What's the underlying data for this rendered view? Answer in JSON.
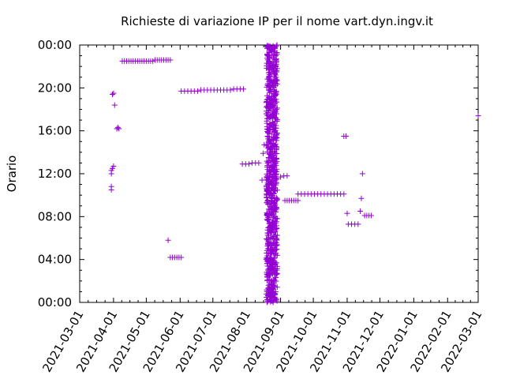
{
  "chart_data": {
    "type": "scatter",
    "title": "Richieste di variazione IP per il nome vart.dyn.ingv.it",
    "xlabel": "",
    "ylabel": "Orario",
    "x_ticks": [
      "2021-03-01",
      "2021-04-01",
      "2021-05-01",
      "2021-06-01",
      "2021-07-01",
      "2021-08-01",
      "2021-09-01",
      "2021-10-01",
      "2021-11-01",
      "2021-12-01",
      "2022-01-01",
      "2022-02-01",
      "2022-03-01"
    ],
    "y_ticks": [
      "00:00",
      "04:00",
      "08:00",
      "12:00",
      "16:00",
      "20:00",
      "00:00"
    ],
    "xlim": [
      "2021-03-01",
      "2022-03-01"
    ],
    "ylim_hours": [
      0,
      24
    ],
    "grid": false,
    "marker": "+",
    "color": "#9400d3",
    "points": [
      [
        "2021-03-30",
        10.5
      ],
      [
        "2021-03-30",
        10.8
      ],
      [
        "2021-03-30",
        12.0
      ],
      [
        "2021-03-30",
        12.3
      ],
      [
        "2021-03-31",
        12.5
      ],
      [
        "2021-04-01",
        12.7
      ],
      [
        "2021-03-31",
        19.4
      ],
      [
        "2021-04-01",
        19.5
      ],
      [
        "2021-04-02",
        18.4
      ],
      [
        "2021-04-04",
        16.2
      ],
      [
        "2021-04-05",
        16.3
      ],
      [
        "2021-04-06",
        16.2
      ],
      [
        "2021-04-09",
        22.5
      ],
      [
        "2021-04-11",
        22.5
      ],
      [
        "2021-04-13",
        22.5
      ],
      [
        "2021-04-15",
        22.5
      ],
      [
        "2021-04-17",
        22.5
      ],
      [
        "2021-04-19",
        22.5
      ],
      [
        "2021-04-21",
        22.5
      ],
      [
        "2021-04-23",
        22.5
      ],
      [
        "2021-04-25",
        22.5
      ],
      [
        "2021-04-27",
        22.5
      ],
      [
        "2021-04-29",
        22.5
      ],
      [
        "2021-05-01",
        22.5
      ],
      [
        "2021-05-03",
        22.5
      ],
      [
        "2021-05-05",
        22.5
      ],
      [
        "2021-05-07",
        22.5
      ],
      [
        "2021-05-09",
        22.6
      ],
      [
        "2021-05-11",
        22.6
      ],
      [
        "2021-05-13",
        22.6
      ],
      [
        "2021-05-15",
        22.6
      ],
      [
        "2021-05-17",
        22.6
      ],
      [
        "2021-05-19",
        22.6
      ],
      [
        "2021-05-21",
        22.6
      ],
      [
        "2021-05-23",
        22.6
      ],
      [
        "2021-05-21",
        5.8
      ],
      [
        "2021-05-23",
        4.2
      ],
      [
        "2021-05-25",
        4.2
      ],
      [
        "2021-05-27",
        4.2
      ],
      [
        "2021-05-29",
        4.2
      ],
      [
        "2021-05-31",
        4.2
      ],
      [
        "2021-06-02",
        4.2
      ],
      [
        "2021-06-02",
        19.7
      ],
      [
        "2021-06-05",
        19.7
      ],
      [
        "2021-06-08",
        19.7
      ],
      [
        "2021-06-11",
        19.7
      ],
      [
        "2021-06-14",
        19.7
      ],
      [
        "2021-06-17",
        19.7
      ],
      [
        "2021-06-20",
        19.8
      ],
      [
        "2021-06-23",
        19.8
      ],
      [
        "2021-06-26",
        19.8
      ],
      [
        "2021-06-29",
        19.8
      ],
      [
        "2021-07-02",
        19.8
      ],
      [
        "2021-07-05",
        19.8
      ],
      [
        "2021-07-08",
        19.8
      ],
      [
        "2021-07-11",
        19.8
      ],
      [
        "2021-07-14",
        19.8
      ],
      [
        "2021-07-17",
        19.8
      ],
      [
        "2021-07-20",
        19.9
      ],
      [
        "2021-07-23",
        19.9
      ],
      [
        "2021-07-26",
        19.9
      ],
      [
        "2021-07-29",
        19.9
      ],
      [
        "2021-07-28",
        12.9
      ],
      [
        "2021-07-31",
        12.9
      ],
      [
        "2021-08-03",
        12.9
      ],
      [
        "2021-08-06",
        13.0
      ],
      [
        "2021-08-09",
        13.0
      ],
      [
        "2021-08-12",
        13.0
      ],
      [
        "2021-08-15",
        11.4
      ],
      [
        "2021-08-16",
        13.9
      ],
      [
        "2021-08-17",
        14.7
      ],
      [
        "2021-09-01",
        11.7
      ],
      [
        "2021-09-04",
        11.8
      ],
      [
        "2021-09-07",
        11.8
      ],
      [
        "2021-09-05",
        9.5
      ],
      [
        "2021-09-07",
        9.5
      ],
      [
        "2021-09-09",
        9.5
      ],
      [
        "2021-09-11",
        9.5
      ],
      [
        "2021-09-13",
        9.5
      ],
      [
        "2021-09-15",
        9.5
      ],
      [
        "2021-09-17",
        9.5
      ],
      [
        "2021-09-17",
        10.1
      ],
      [
        "2021-09-20",
        10.1
      ],
      [
        "2021-09-23",
        10.1
      ],
      [
        "2021-09-26",
        10.1
      ],
      [
        "2021-09-29",
        10.1
      ],
      [
        "2021-10-02",
        10.1
      ],
      [
        "2021-10-05",
        10.1
      ],
      [
        "2021-10-08",
        10.1
      ],
      [
        "2021-10-11",
        10.1
      ],
      [
        "2021-10-14",
        10.1
      ],
      [
        "2021-10-17",
        10.1
      ],
      [
        "2021-10-20",
        10.1
      ],
      [
        "2021-10-23",
        10.1
      ],
      [
        "2021-10-26",
        10.1
      ],
      [
        "2021-10-29",
        10.1
      ],
      [
        "2021-10-29",
        15.5
      ],
      [
        "2021-10-31",
        15.5
      ],
      [
        "2021-11-01",
        8.3
      ],
      [
        "2021-11-02",
        7.3
      ],
      [
        "2021-11-05",
        7.3
      ],
      [
        "2021-11-08",
        7.3
      ],
      [
        "2021-11-11",
        7.3
      ],
      [
        "2021-11-13",
        8.5
      ],
      [
        "2021-11-14",
        9.7
      ],
      [
        "2021-11-15",
        12.0
      ],
      [
        "2021-11-17",
        8.1
      ],
      [
        "2021-11-19",
        8.1
      ],
      [
        "2021-11-21",
        8.1
      ],
      [
        "2021-11-23",
        8.1
      ],
      [
        "2022-03-01",
        17.4
      ]
    ],
    "dense_band": {
      "x_from": "2021-08-19",
      "x_to": "2021-08-29",
      "y_from_hours": 0,
      "y_to_hours": 24
    }
  }
}
